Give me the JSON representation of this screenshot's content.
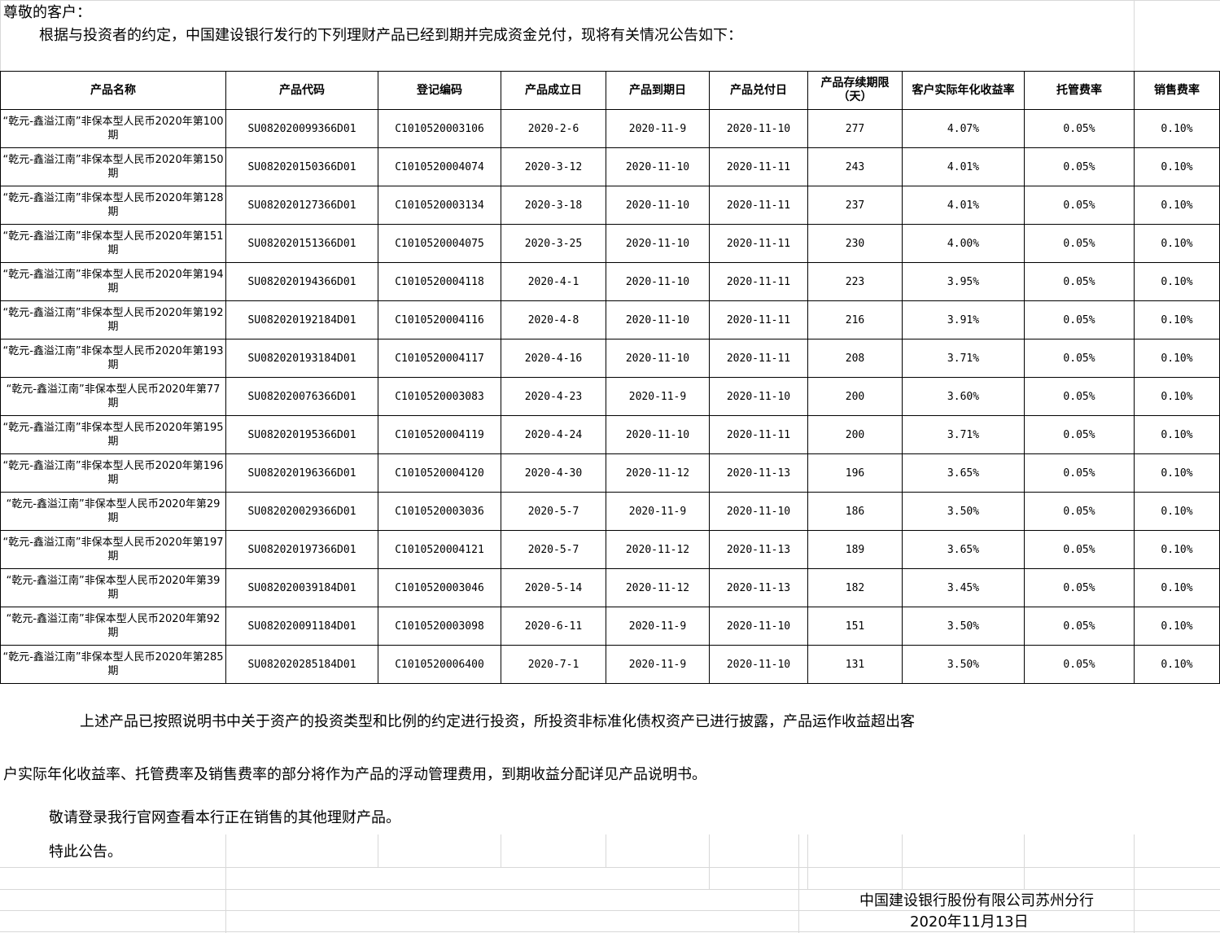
{
  "greeting": "尊敬的客户：",
  "intro": "根据与投资者的约定，中国建设银行发行的下列理财产品已经到期并完成资金兑付，现将有关情况公告如下：",
  "table": {
    "headers": [
      "产品名称",
      "产品代码",
      "登记编码",
      "产品成立日",
      "产品到期日",
      "产品兑付日",
      "产品存续期限（天）",
      "客户实际年化收益率",
      "托管费率",
      "销售费率"
    ],
    "rows": [
      [
        "“乾元-鑫溢江南”非保本型人民币2020年第100期",
        "SU082020099366D01",
        "C1010520003106",
        "2020-2-6",
        "2020-11-9",
        "2020-11-10",
        "277",
        "4.07%",
        "0.05%",
        "0.10%"
      ],
      [
        "“乾元-鑫溢江南”非保本型人民币2020年第150期",
        "SU082020150366D01",
        "C1010520004074",
        "2020-3-12",
        "2020-11-10",
        "2020-11-11",
        "243",
        "4.01%",
        "0.05%",
        "0.10%"
      ],
      [
        "“乾元-鑫溢江南”非保本型人民币2020年第128期",
        "SU082020127366D01",
        "C1010520003134",
        "2020-3-18",
        "2020-11-10",
        "2020-11-11",
        "237",
        "4.01%",
        "0.05%",
        "0.10%"
      ],
      [
        "“乾元-鑫溢江南”非保本型人民币2020年第151期",
        "SU082020151366D01",
        "C1010520004075",
        "2020-3-25",
        "2020-11-10",
        "2020-11-11",
        "230",
        "4.00%",
        "0.05%",
        "0.10%"
      ],
      [
        "“乾元-鑫溢江南”非保本型人民币2020年第194期",
        "SU082020194366D01",
        "C1010520004118",
        "2020-4-1",
        "2020-11-10",
        "2020-11-11",
        "223",
        "3.95%",
        "0.05%",
        "0.10%"
      ],
      [
        "“乾元-鑫溢江南”非保本型人民币2020年第192期",
        "SU082020192184D01",
        "C1010520004116",
        "2020-4-8",
        "2020-11-10",
        "2020-11-11",
        "216",
        "3.91%",
        "0.05%",
        "0.10%"
      ],
      [
        "“乾元-鑫溢江南”非保本型人民币2020年第193期",
        "SU082020193184D01",
        "C1010520004117",
        "2020-4-16",
        "2020-11-10",
        "2020-11-11",
        "208",
        "3.71%",
        "0.05%",
        "0.10%"
      ],
      [
        "“乾元-鑫溢江南”非保本型人民币2020年第77期",
        "SU082020076366D01",
        "C1010520003083",
        "2020-4-23",
        "2020-11-9",
        "2020-11-10",
        "200",
        "3.60%",
        "0.05%",
        "0.10%"
      ],
      [
        "“乾元-鑫溢江南”非保本型人民币2020年第195期",
        "SU082020195366D01",
        "C1010520004119",
        "2020-4-24",
        "2020-11-10",
        "2020-11-11",
        "200",
        "3.71%",
        "0.05%",
        "0.10%"
      ],
      [
        "“乾元-鑫溢江南”非保本型人民币2020年第196期",
        "SU082020196366D01",
        "C1010520004120",
        "2020-4-30",
        "2020-11-12",
        "2020-11-13",
        "196",
        "3.65%",
        "0.05%",
        "0.10%"
      ],
      [
        "“乾元-鑫溢江南”非保本型人民币2020年第29期",
        "SU082020029366D01",
        "C1010520003036",
        "2020-5-7",
        "2020-11-9",
        "2020-11-10",
        "186",
        "3.50%",
        "0.05%",
        "0.10%"
      ],
      [
        "“乾元-鑫溢江南”非保本型人民币2020年第197期",
        "SU082020197366D01",
        "C1010520004121",
        "2020-5-7",
        "2020-11-12",
        "2020-11-13",
        "189",
        "3.65%",
        "0.05%",
        "0.10%"
      ],
      [
        "“乾元-鑫溢江南”非保本型人民币2020年第39期",
        "SU082020039184D01",
        "C1010520003046",
        "2020-5-14",
        "2020-11-12",
        "2020-11-13",
        "182",
        "3.45%",
        "0.05%",
        "0.10%"
      ],
      [
        "“乾元-鑫溢江南”非保本型人民币2020年第92期",
        "SU082020091184D01",
        "C1010520003098",
        "2020-6-11",
        "2020-11-9",
        "2020-11-10",
        "151",
        "3.50%",
        "0.05%",
        "0.10%"
      ],
      [
        "“乾元-鑫溢江南”非保本型人民币2020年第285期",
        "SU082020285184D01",
        "C1010520006400",
        "2020-7-1",
        "2020-11-9",
        "2020-11-10",
        "131",
        "3.50%",
        "0.05%",
        "0.10%"
      ]
    ]
  },
  "para1a": "上述产品已按照说明书中关于资产的投资类型和比例的约定进行投资，所投资非标准化债权资产已进行披露，产品运作收益超出客",
  "para1b": "户实际年化收益率、托管费率及销售费率的部分将作为产品的浮动管理费用，到期收益分配详见产品说明书。",
  "para2": "敬请登录我行官网查看本行正在销售的其他理财产品。",
  "para3": "特此公告。",
  "signature": "中国建设银行股份有限公司苏州分行",
  "date": "2020年11月13日"
}
